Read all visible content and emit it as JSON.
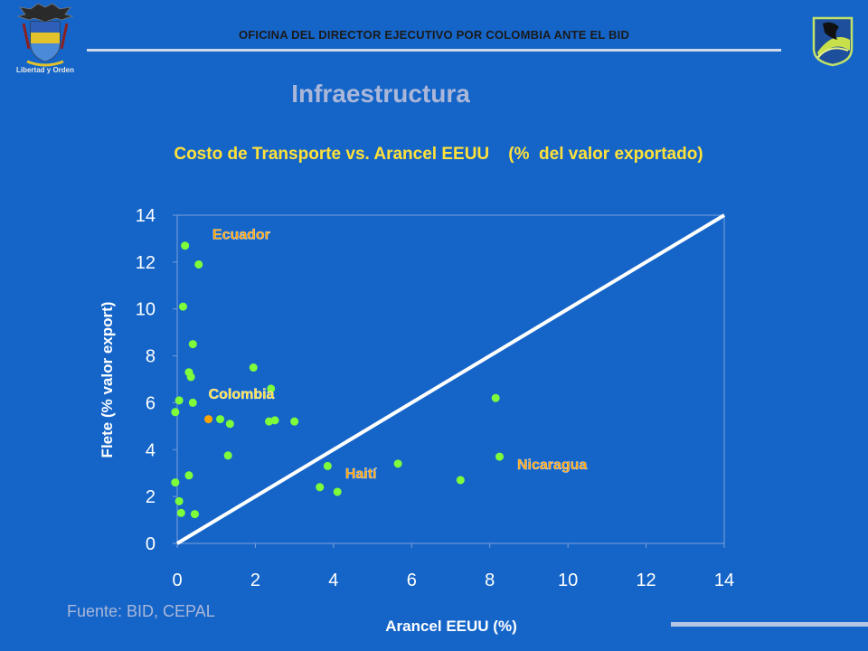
{
  "header": {
    "office": "OFICINA DEL DIRECTOR EJECUTIVO POR COLOMBIA ANTE EL BID"
  },
  "logos": {
    "left": "colombia-coat-of-arms",
    "left_caption": "Libertad y Orden",
    "right": "bid-emblem"
  },
  "slide": {
    "title": "Infraestructura",
    "subtitle": "Costo de Transporte vs. Arancel EEUU    (%  del valor exportado)",
    "source": "Fuente: BID, CEPAL"
  },
  "colors": {
    "background": "#1565c8",
    "point": "#7cff3a",
    "highlight_point": "#ffa500",
    "label": "#ffe13a",
    "country_label": "#ffa000",
    "diagonal": "#ffffff"
  },
  "chart_data": {
    "type": "scatter",
    "xlabel": "Arancel EEUU (%)",
    "ylabel": "Flete (% valor export)",
    "xlim": [
      0,
      14
    ],
    "ylim": [
      0,
      14
    ],
    "xticks": [
      "0",
      "2",
      "4",
      "6",
      "8",
      "10",
      "12",
      "14"
    ],
    "yticks": [
      "0",
      "2",
      "4",
      "6",
      "8",
      "10",
      "12",
      "14"
    ],
    "reference_line": {
      "from": [
        0,
        0
      ],
      "to": [
        14,
        14
      ]
    },
    "points": [
      {
        "x": 0.2,
        "y": 12.7
      },
      {
        "x": 0.55,
        "y": 11.9
      },
      {
        "x": 0.15,
        "y": 10.1
      },
      {
        "x": 0.4,
        "y": 8.5
      },
      {
        "x": 0.3,
        "y": 7.3
      },
      {
        "x": 0.35,
        "y": 7.1
      },
      {
        "x": 0.05,
        "y": 6.1
      },
      {
        "x": 0.4,
        "y": 6.0
      },
      {
        "x": -0.05,
        "y": 5.6
      },
      {
        "x": 0.8,
        "y": 5.3,
        "highlight": true
      },
      {
        "x": 1.1,
        "y": 5.3
      },
      {
        "x": 1.35,
        "y": 5.1
      },
      {
        "x": 1.95,
        "y": 7.5
      },
      {
        "x": 2.4,
        "y": 6.6
      },
      {
        "x": 2.35,
        "y": 5.2
      },
      {
        "x": 2.5,
        "y": 5.25
      },
      {
        "x": 3.0,
        "y": 5.2
      },
      {
        "x": 1.3,
        "y": 3.75
      },
      {
        "x": -0.05,
        "y": 2.6
      },
      {
        "x": 0.3,
        "y": 2.9
      },
      {
        "x": 0.05,
        "y": 1.8
      },
      {
        "x": 0.1,
        "y": 1.3
      },
      {
        "x": 0.45,
        "y": 1.25
      },
      {
        "x": 3.65,
        "y": 2.4
      },
      {
        "x": 3.85,
        "y": 3.3
      },
      {
        "x": 4.1,
        "y": 2.2
      },
      {
        "x": 5.65,
        "y": 3.4
      },
      {
        "x": 7.25,
        "y": 2.7
      },
      {
        "x": 8.15,
        "y": 6.2
      },
      {
        "x": 8.25,
        "y": 3.7
      }
    ],
    "annotations": [
      {
        "text": "Ecuador",
        "x": 0.9,
        "y": 13.2
      },
      {
        "text": "Colombia",
        "x": 0.8,
        "y": 6.4
      },
      {
        "text": "Haití",
        "x": 4.3,
        "y": 3.0
      },
      {
        "text": "Nicaragua",
        "x": 8.7,
        "y": 3.4
      }
    ]
  }
}
